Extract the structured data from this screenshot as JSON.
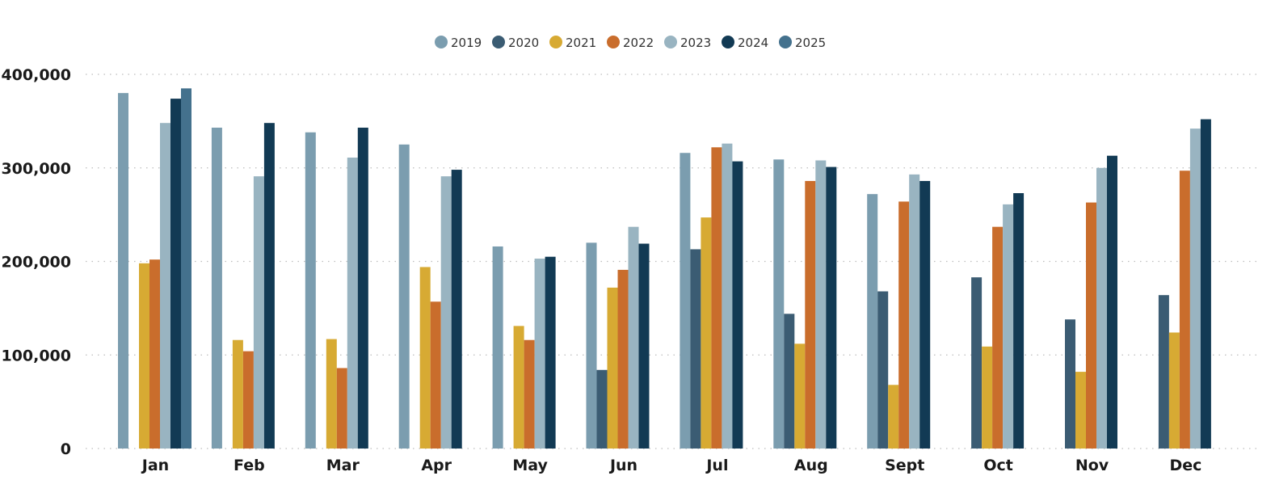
{
  "chart_data": {
    "type": "bar",
    "title": "",
    "xlabel": "",
    "ylabel": "",
    "ylim": [
      0,
      400000
    ],
    "y_ticks": [
      0,
      100000,
      200000,
      300000,
      400000
    ],
    "y_tick_labels": [
      "0",
      "100,000",
      "200,000",
      "300,000",
      "400,000"
    ],
    "grid": true,
    "legend_position": "top-center",
    "categories": [
      "Jan",
      "Feb",
      "Mar",
      "Apr",
      "May",
      "Jun",
      "Jul",
      "Aug",
      "Sept",
      "Oct",
      "Nov",
      "Dec"
    ],
    "series": [
      {
        "name": "2019",
        "color": "#7b9daf",
        "values": [
          380000,
          343000,
          338000,
          325000,
          216000,
          220000,
          316000,
          309000,
          272000,
          null,
          null,
          null
        ]
      },
      {
        "name": "2020",
        "color": "#3b5c73",
        "values": [
          null,
          null,
          null,
          null,
          null,
          84000,
          213000,
          144000,
          168000,
          183000,
          138000,
          164000
        ]
      },
      {
        "name": "2021",
        "color": "#d7aa33",
        "values": [
          198000,
          116000,
          117000,
          194000,
          131000,
          172000,
          247000,
          112000,
          68000,
          109000,
          82000,
          124000
        ]
      },
      {
        "name": "2022",
        "color": "#c96d2c",
        "values": [
          202000,
          104000,
          86000,
          157000,
          116000,
          191000,
          322000,
          286000,
          264000,
          237000,
          263000,
          297000
        ]
      },
      {
        "name": "2023",
        "color": "#99b4c1",
        "values": [
          348000,
          291000,
          311000,
          291000,
          203000,
          237000,
          326000,
          308000,
          293000,
          261000,
          300000,
          342000
        ]
      },
      {
        "name": "2024",
        "color": "#123a54",
        "values": [
          374000,
          348000,
          343000,
          298000,
          205000,
          219000,
          307000,
          301000,
          286000,
          273000,
          313000,
          352000
        ]
      },
      {
        "name": "2025",
        "color": "#44718d",
        "values": [
          385000,
          null,
          null,
          null,
          null,
          null,
          null,
          null,
          null,
          null,
          null,
          null
        ]
      }
    ]
  }
}
